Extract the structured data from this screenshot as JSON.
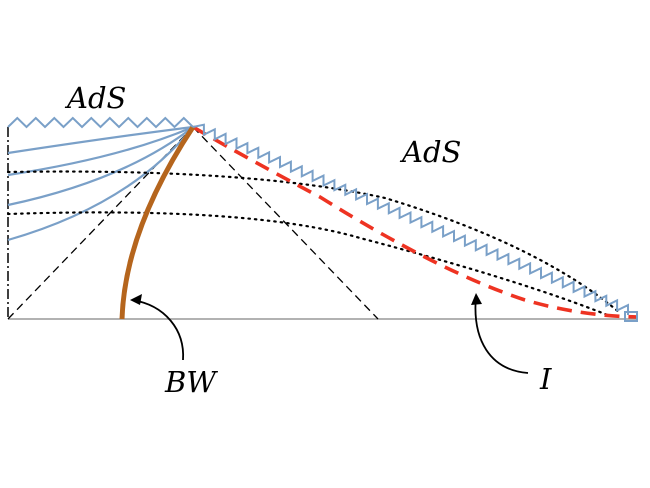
{
  "labels": {
    "ads_left": "AdS",
    "ads_right": "AdS",
    "brane": "BW",
    "interface": "I"
  },
  "colors": {
    "zigzag": "#7aa0c8",
    "slice_curves": "#7aa0c8",
    "brane": "#b5651d",
    "interface": "#ee3322",
    "lines": "#000000",
    "baseline": "#999999"
  }
}
